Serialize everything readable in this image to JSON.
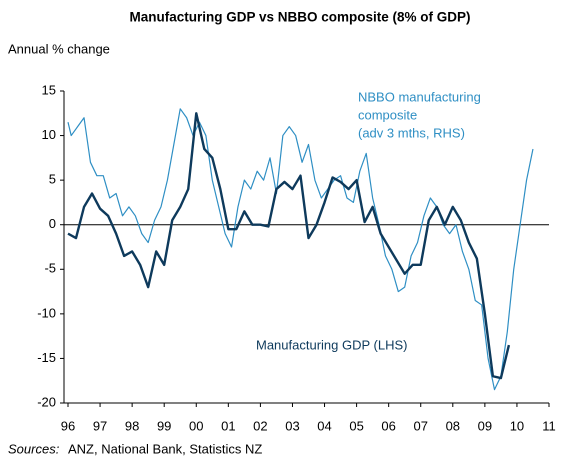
{
  "chart_data": {
    "type": "line",
    "title": "Manufacturing GDP vs NBBO composite (8% of GDP)",
    "y_label": "Annual % change",
    "annotations": [
      "NBBO manufacturing",
      "composite",
      "(adv 3 mths, RHS)",
      "Manufacturing GDP (LHS)"
    ],
    "source_label": "Sources:",
    "source": "ANZ, National Bank, Statistics NZ",
    "xlim": [
      1996,
      2011
    ],
    "xticks": [
      {
        "value": 1996,
        "label": "96"
      },
      {
        "value": 1997,
        "label": "97"
      },
      {
        "value": 1998,
        "label": "98"
      },
      {
        "value": 1999,
        "label": "99"
      },
      {
        "value": 2000,
        "label": "00"
      },
      {
        "value": 2001,
        "label": "01"
      },
      {
        "value": 2002,
        "label": "02"
      },
      {
        "value": 2003,
        "label": "03"
      },
      {
        "value": 2004,
        "label": "04"
      },
      {
        "value": 2005,
        "label": "05"
      },
      {
        "value": 2006,
        "label": "06"
      },
      {
        "value": 2007,
        "label": "07"
      },
      {
        "value": 2008,
        "label": "08"
      },
      {
        "value": 2009,
        "label": "09"
      },
      {
        "value": 2010,
        "label": "10"
      },
      {
        "value": 2011,
        "label": "11"
      }
    ],
    "ylim": [
      -20,
      15
    ],
    "yticks": [
      15,
      10,
      5,
      0,
      -5,
      -10,
      -15,
      -20
    ],
    "grid": false,
    "series": [
      {
        "name": "NBBO manufacturing composite",
        "color": "#2f8fc4",
        "width": 1.2,
        "x": [
          1996.0,
          1996.1,
          1996.3,
          1996.5,
          1996.7,
          1996.9,
          1997.1,
          1997.3,
          1997.5,
          1997.7,
          1997.9,
          1998.1,
          1998.3,
          1998.5,
          1998.7,
          1998.9,
          1999.1,
          1999.3,
          1999.5,
          1999.7,
          1999.9,
          2000.1,
          2000.3,
          2000.5,
          2000.7,
          2000.9,
          2001.1,
          2001.3,
          2001.5,
          2001.7,
          2001.9,
          2002.1,
          2002.3,
          2002.5,
          2002.7,
          2002.9,
          2003.1,
          2003.3,
          2003.5,
          2003.7,
          2003.9,
          2004.1,
          2004.3,
          2004.5,
          2004.7,
          2004.9,
          2005.1,
          2005.3,
          2005.5,
          2005.7,
          2005.9,
          2006.1,
          2006.3,
          2006.5,
          2006.7,
          2006.9,
          2007.1,
          2007.3,
          2007.5,
          2007.7,
          2007.9,
          2008.1,
          2008.3,
          2008.5,
          2008.7,
          2008.9,
          2009.1,
          2009.3,
          2009.5,
          2009.7,
          2009.9,
          2010.1,
          2010.3,
          2010.5
        ],
        "values": [
          11.5,
          10,
          11,
          12,
          7,
          5.5,
          5.5,
          3,
          3.5,
          1,
          2,
          1,
          -1,
          -2,
          0.5,
          2,
          5,
          9,
          13,
          12,
          10,
          11.5,
          10,
          5,
          2,
          -1,
          -2.5,
          2,
          5,
          4,
          6,
          5,
          7.5,
          3.5,
          10,
          11,
          10,
          7,
          9,
          5,
          3,
          4,
          5,
          5.5,
          3,
          2.5,
          6,
          8,
          3,
          0,
          -3.5,
          -5,
          -7.5,
          -7,
          -3.5,
          -2,
          1,
          3,
          2,
          0,
          -1,
          0,
          -3,
          -5,
          -8.5,
          -9,
          -15,
          -18.5,
          -17,
          -12,
          -5,
          0,
          5,
          8.5
        ]
      },
      {
        "name": "Manufacturing GDP",
        "color": "#0e3a5c",
        "width": 2.4,
        "x": [
          1996.0,
          1996.25,
          1996.5,
          1996.75,
          1997.0,
          1997.25,
          1997.5,
          1997.75,
          1998.0,
          1998.25,
          1998.5,
          1998.75,
          1999.0,
          1999.25,
          1999.5,
          1999.75,
          2000.0,
          2000.25,
          2000.5,
          2000.75,
          2001.0,
          2001.25,
          2001.5,
          2001.75,
          2002.0,
          2002.25,
          2002.5,
          2002.75,
          2003.0,
          2003.25,
          2003.5,
          2003.75,
          2004.0,
          2004.25,
          2004.5,
          2004.75,
          2005.0,
          2005.25,
          2005.5,
          2005.75,
          2006.0,
          2006.25,
          2006.5,
          2006.75,
          2007.0,
          2007.25,
          2007.5,
          2007.75,
          2008.0,
          2008.25,
          2008.5,
          2008.75,
          2009.0,
          2009.25,
          2009.5,
          2009.75
        ],
        "values": [
          -1,
          -1.5,
          2,
          3.5,
          1.8,
          1,
          -1,
          -3.5,
          -3,
          -4.5,
          -7,
          -3,
          -4.5,
          0.5,
          2,
          4,
          12.5,
          8.5,
          7.5,
          4,
          -0.5,
          -0.5,
          1.5,
          0,
          0,
          -0.2,
          4,
          4.8,
          4,
          5.5,
          -1.5,
          0,
          2.5,
          5.3,
          4.8,
          4,
          5,
          0.3,
          2,
          -1,
          -2.5,
          -4,
          -5.5,
          -4.5,
          -4.5,
          0.5,
          2,
          0,
          2,
          0.5,
          -2,
          -3.8,
          -10,
          -17,
          -17.2,
          -13.5
        ]
      }
    ]
  }
}
